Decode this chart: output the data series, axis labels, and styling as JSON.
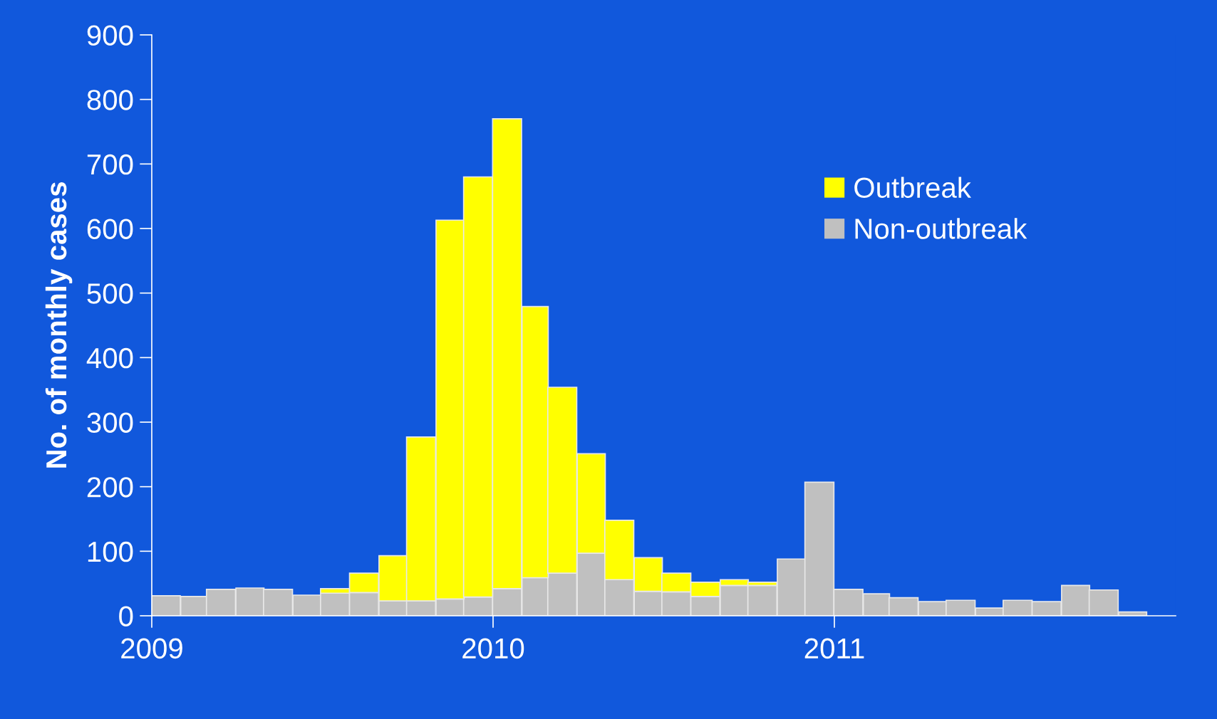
{
  "chart_data": {
    "type": "bar",
    "stacked": true,
    "ylabel": "No. of monthly cases",
    "x": [
      "2009-01-16",
      "2009-02-15",
      "2009-03-16",
      "2009-04-16",
      "2009-05-16",
      "2009-06-16",
      "2009-07-16",
      "2009-08-16",
      "2009-09-16",
      "2009-10-16",
      "2009-11-16",
      "2009-12-16",
      "2010-01-16",
      "2010-02-15",
      "2010-03-16",
      "2010-04-16",
      "2010-05-16",
      "2010-06-16",
      "2010-07-16",
      "2010-08-16",
      "2010-09-16",
      "2010-10-16",
      "2010-11-16",
      "2010-12-16",
      "2011-01-16",
      "2011-02-15",
      "2011-03-16",
      "2011-04-16",
      "2011-05-16",
      "2011-06-16",
      "2011-07-16",
      "2011-08-16",
      "2011-09-16",
      "2011-10-16",
      "2011-11-16",
      "2011-12-16"
    ],
    "series": [
      {
        "name": "Non-outbreak",
        "color": "#c0c0c0",
        "values": [
          31,
          30,
          41,
          43,
          41,
          32,
          35,
          36,
          23,
          23,
          26,
          29,
          42,
          59,
          66,
          97,
          56,
          38,
          37,
          30,
          47,
          47,
          88,
          207,
          41,
          34,
          28,
          22,
          24,
          12,
          24,
          22,
          47,
          40,
          6,
          0
        ]
      },
      {
        "name": "Outbreak",
        "color": "#ffff00",
        "values": [
          0,
          0,
          0,
          0,
          0,
          0,
          7,
          30,
          70,
          254,
          587,
          651,
          728,
          420,
          288,
          154,
          92,
          52,
          29,
          22,
          9,
          5,
          0,
          0,
          0,
          0,
          0,
          0,
          0,
          0,
          0,
          0,
          0,
          0,
          0,
          0
        ]
      }
    ],
    "xlim": [
      "2009-01-01",
      "2012-01-01"
    ],
    "xticks": [
      {
        "value": "2009-01-01",
        "label": "2009"
      },
      {
        "value": "2010-01-01",
        "label": "2010"
      },
      {
        "value": "2011-01-01",
        "label": "2011"
      }
    ],
    "ylim": [
      0,
      900
    ],
    "yticks": [
      0,
      100,
      200,
      300,
      400,
      500,
      600,
      700,
      800,
      900
    ],
    "grid": false,
    "legend": "top right"
  }
}
